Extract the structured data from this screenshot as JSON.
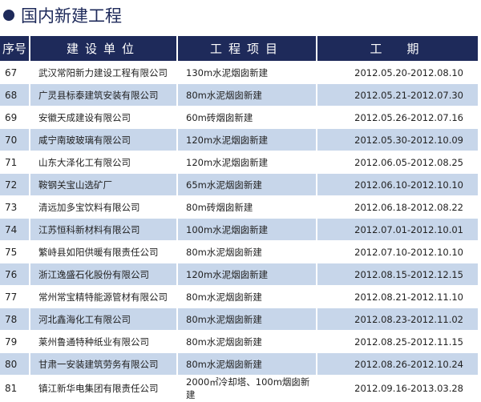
{
  "title": "国内新建工程",
  "headers": [
    "序号",
    "建设单位",
    "工程项目",
    "工　期"
  ],
  "rows": [
    [
      "67",
      "武汉常阳新力建设工程有限公司",
      "130m水泥烟囱新建",
      "2012.05.20-2012.08.10"
    ],
    [
      "68",
      "广灵县标泰建筑安装有限公司",
      "80m水泥烟囱新建",
      "2012.05.21-2012.07.30"
    ],
    [
      "69",
      "安徽天成建设有限公司",
      "60m砖烟囱新建",
      "2012.05.26-2012.07.16"
    ],
    [
      "70",
      "咸宁南玻玻璃有限公司",
      "120m水泥烟囱新建",
      "2012.05.30-2012.10.09"
    ],
    [
      "71",
      "山东大泽化工有限公司",
      "120m水泥烟囱新建",
      "2012.06.05-2012.08.25"
    ],
    [
      "72",
      "鞍钢关宝山选矿厂",
      "65m水泥烟囱新建",
      "2012.06.10-2012.10.10"
    ],
    [
      "73",
      "清远加多宝饮料有限公司",
      "80m砖烟囱新建",
      "2012.06.18-2012.08.22"
    ],
    [
      "74",
      "江苏恒科新材料有限公司",
      "100m水泥烟囱新建",
      "2012.07.01-2012.10.01"
    ],
    [
      "75",
      "繁峙县如阳供暖有限责任公司",
      "80m水泥烟囱新建",
      "2012.07.10-2012.10.10"
    ],
    [
      "76",
      "浙江逸盛石化股份有限公司",
      "120m水泥烟囱新建",
      "2012.08.15-2012.12.15"
    ],
    [
      "77",
      "常州常宝精特能源管材有限公司",
      "80m水泥烟囱新建",
      "2012.08.21-2012.11.10"
    ],
    [
      "78",
      "河北鑫海化工有限公司",
      "80m水泥烟囱新建",
      "2012.08.23-2012.11.02"
    ],
    [
      "79",
      "莱州鲁通特种纸业有限公司",
      "80m水泥烟囱新建",
      "2012.08.25-2012.11.15"
    ],
    [
      "80",
      "甘肃一安装建筑劳务有限公司",
      "80m水泥烟囱新建",
      "2012.08.26-2012.10.24"
    ],
    [
      "81",
      "镇江新华电集团有限责任公司",
      "2000㎡冷却塔、100m烟囱新建",
      "2012.09.16-2013.03.28"
    ]
  ]
}
